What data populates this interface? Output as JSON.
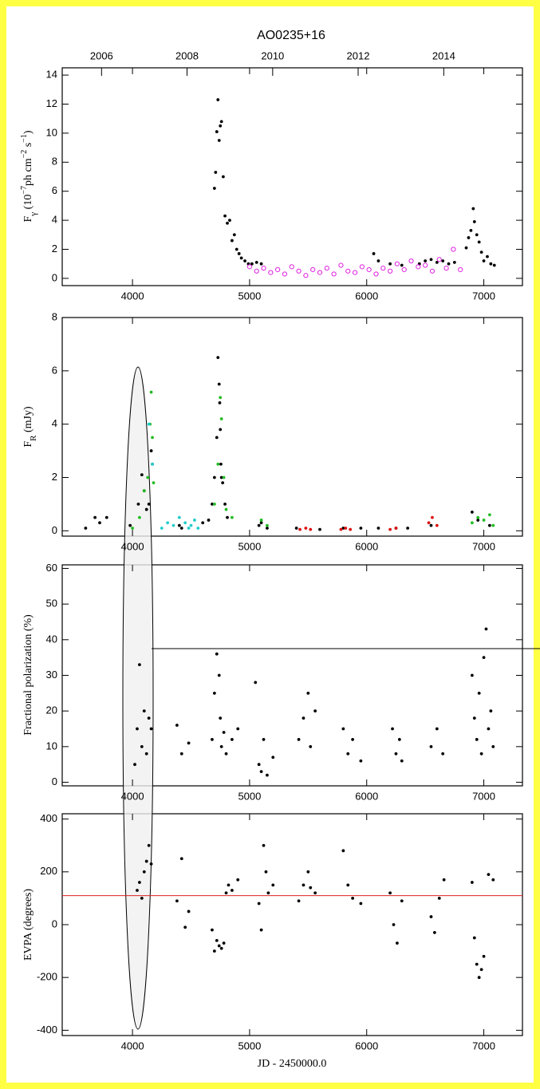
{
  "chart_data": [
    {
      "type": "scatter",
      "title": "AO0235+16",
      "ylabel": [
        "F",
        "γ",
        " (10",
        "−7",
        "ph cm",
        "−2",
        " s",
        "−1",
        ")"
      ],
      "xlim": [
        3400,
        7330
      ],
      "xticks": [
        4000,
        5000,
        6000,
        7000
      ],
      "x2ticks": [
        {
          "value": 3736,
          "label": "2006"
        },
        {
          "value": 4466,
          "label": "2008"
        },
        {
          "value": 5197,
          "label": "2010"
        },
        {
          "value": 5927,
          "label": "2012"
        },
        {
          "value": 6658,
          "label": "2014"
        }
      ],
      "ylim": [
        -0.5,
        14.5
      ],
      "yticks": [
        0,
        2,
        4,
        6,
        8,
        10,
        12,
        14
      ],
      "series": [
        {
          "color": "#000000",
          "marker": "dot",
          "x": [
            4700,
            4710,
            4720,
            4730,
            4740,
            4750,
            4760,
            4775,
            4790,
            4810,
            4830,
            4850,
            4870,
            4890,
            4910,
            4930,
            4960,
            4990,
            5020,
            5060,
            5100,
            6060,
            6100,
            6200,
            6300,
            6450,
            6500,
            6550,
            6600,
            6650,
            6700,
            6750,
            6850,
            6870,
            6890,
            6910,
            6920,
            6940,
            6960,
            6980,
            7000,
            7030,
            7060,
            7090
          ],
          "values": [
            6.2,
            7.3,
            10.1,
            12.3,
            9.5,
            10.5,
            10.8,
            7.0,
            4.3,
            3.8,
            4.0,
            2.6,
            3.0,
            2.0,
            1.7,
            1.4,
            1.2,
            1.0,
            1.0,
            1.1,
            1.0,
            1.7,
            1.2,
            1.0,
            0.9,
            1.0,
            1.2,
            1.3,
            1.1,
            1.2,
            1.0,
            1.1,
            2.1,
            2.8,
            3.3,
            4.8,
            3.9,
            3.0,
            2.5,
            1.8,
            1.2,
            1.5,
            1.0,
            0.9
          ]
        },
        {
          "color": "#e020e0",
          "marker": "open",
          "x": [
            5000,
            5060,
            5120,
            5180,
            5240,
            5300,
            5360,
            5420,
            5480,
            5540,
            5600,
            5660,
            5720,
            5780,
            5840,
            5900,
            5960,
            6020,
            6080,
            6140,
            6200,
            6260,
            6320,
            6380,
            6440,
            6500,
            6560,
            6620,
            6680,
            6740,
            6800
          ],
          "values": [
            0.8,
            0.5,
            0.7,
            0.4,
            0.6,
            0.3,
            0.8,
            0.5,
            0.2,
            0.6,
            0.4,
            0.7,
            0.3,
            0.9,
            0.5,
            0.4,
            0.8,
            0.6,
            0.3,
            0.7,
            0.5,
            1.0,
            0.6,
            1.2,
            0.8,
            0.9,
            0.5,
            1.3,
            0.7,
            2.0,
            0.6
          ]
        }
      ]
    },
    {
      "type": "scatter",
      "ylabel": [
        "F",
        "R",
        " (mJy)"
      ],
      "xlim": [
        3400,
        7330
      ],
      "xticks": [
        4000,
        5000,
        6000,
        7000
      ],
      "ylim": [
        -0.2,
        8.0
      ],
      "yticks": [
        0,
        2,
        4,
        6,
        8
      ],
      "series": [
        {
          "color": "#000000",
          "marker": "dot",
          "x": [
            3600,
            3680,
            3720,
            3780,
            3980,
            4050,
            4080,
            4100,
            4120,
            4140,
            4160,
            4170,
            4400,
            4420,
            4600,
            4650,
            4680,
            4700,
            4720,
            4730,
            4740,
            4745,
            4750,
            4755,
            4760,
            4770,
            4790,
            4810,
            5080,
            5100,
            5150,
            5400,
            5600,
            5800,
            5950,
            6100,
            6250,
            6350,
            6550,
            6900,
            6950,
            7050
          ],
          "values": [
            0.1,
            0.5,
            0.3,
            0.5,
            0.2,
            1.0,
            2.1,
            1.5,
            0.8,
            1.0,
            3.0,
            2.5,
            0.2,
            0.1,
            0.3,
            0.4,
            1.0,
            2.0,
            3.5,
            6.5,
            5.5,
            4.8,
            3.8,
            2.5,
            2.0,
            1.8,
            1.0,
            0.5,
            0.2,
            0.3,
            0.1,
            0.1,
            0.05,
            0.1,
            0.1,
            0.1,
            0.1,
            0.1,
            0.2,
            0.7,
            0.4,
            0.2
          ]
        },
        {
          "color": "#22bb22",
          "marker": "dot",
          "x": [
            4000,
            4060,
            4100,
            4130,
            4150,
            4160,
            4170,
            4180,
            4700,
            4730,
            4750,
            4760,
            4780,
            4800,
            4850,
            5100,
            5150,
            6900,
            6950,
            7000,
            7050,
            7080
          ],
          "values": [
            0.1,
            0.5,
            1.5,
            2.0,
            4.0,
            5.2,
            3.5,
            1.8,
            1.0,
            2.5,
            5.0,
            4.2,
            2.0,
            0.8,
            0.5,
            0.4,
            0.2,
            0.3,
            0.5,
            0.4,
            0.6,
            0.2
          ]
        },
        {
          "color": "#22cccc",
          "marker": "dot",
          "x": [
            4250,
            4300,
            4350,
            4400,
            4450,
            4480,
            4500,
            4530,
            4560,
            4140,
            4170
          ],
          "values": [
            0.1,
            0.3,
            0.2,
            0.5,
            0.3,
            0.1,
            0.2,
            0.4,
            0.1,
            4.0,
            2.5
          ]
        },
        {
          "color": "#dd1111",
          "marker": "dot",
          "x": [
            5430,
            5480,
            5520,
            5780,
            5820,
            5860,
            6200,
            6250,
            6530,
            6560,
            6600
          ],
          "values": [
            0.05,
            0.1,
            0.05,
            0.05,
            0.1,
            0.05,
            0.05,
            0.1,
            0.3,
            0.5,
            0.2
          ]
        }
      ]
    },
    {
      "type": "scatter",
      "ylabel": [
        "Fractional polarization (%)"
      ],
      "xlim": [
        3400,
        7330
      ],
      "xticks": [
        4000,
        5000,
        6000,
        7000
      ],
      "ylim": [
        -1,
        61
      ],
      "yticks": [
        0,
        10,
        20,
        30,
        40,
        50,
        60
      ],
      "series": [
        {
          "color": "#000000",
          "marker": "dot",
          "x": [
            4020,
            4040,
            4060,
            4080,
            4100,
            4120,
            4140,
            4160,
            4380,
            4420,
            4480,
            4680,
            4700,
            4720,
            4740,
            4750,
            4760,
            4780,
            4800,
            4850,
            4900,
            5050,
            5080,
            5100,
            5120,
            5150,
            5200,
            5420,
            5460,
            5500,
            5520,
            5560,
            5800,
            5840,
            5880,
            5950,
            6220,
            6250,
            6280,
            6300,
            6550,
            6600,
            6650,
            6900,
            6920,
            6940,
            6960,
            6980,
            7000,
            7020,
            7040,
            7060,
            7080
          ],
          "values": [
            5,
            15,
            33,
            10,
            20,
            8,
            18,
            15,
            16,
            8,
            11,
            12,
            25,
            36,
            30,
            18,
            10,
            14,
            8,
            12,
            15,
            28,
            5,
            3,
            12,
            2,
            7,
            12,
            18,
            25,
            10,
            20,
            15,
            8,
            12,
            6,
            15,
            8,
            12,
            6,
            10,
            15,
            8,
            30,
            18,
            12,
            25,
            8,
            35,
            43,
            15,
            20,
            10
          ]
        }
      ]
    },
    {
      "type": "scatter",
      "ylabel": [
        "EVPA (degrees)"
      ],
      "xlabel": "JD - 2450000.0",
      "xlim": [
        3400,
        7330
      ],
      "xticks": [
        4000,
        5000,
        6000,
        7000
      ],
      "ylim": [
        -420,
        420
      ],
      "yticks": [
        -400,
        -200,
        0,
        200,
        400
      ],
      "hline": {
        "value": 110,
        "color": "#dd2222"
      },
      "series": [
        {
          "color": "#000000",
          "marker": "dot",
          "x": [
            4040,
            4060,
            4080,
            4100,
            4120,
            4140,
            4160,
            4380,
            4420,
            4450,
            4480,
            4680,
            4700,
            4720,
            4740,
            4760,
            4780,
            4800,
            4820,
            4850,
            4900,
            5080,
            5100,
            5120,
            5140,
            5160,
            5200,
            5420,
            5460,
            5500,
            5520,
            5560,
            5800,
            5840,
            5880,
            5950,
            6200,
            6230,
            6260,
            6300,
            6550,
            6580,
            6620,
            6660,
            6900,
            6920,
            6940,
            6960,
            6980,
            7000,
            7040,
            7080
          ],
          "values": [
            130,
            160,
            100,
            200,
            240,
            300,
            230,
            90,
            250,
            -10,
            50,
            -20,
            -100,
            -60,
            -80,
            -90,
            -70,
            120,
            150,
            130,
            170,
            80,
            -20,
            300,
            200,
            120,
            150,
            90,
            150,
            200,
            140,
            120,
            280,
            150,
            100,
            80,
            120,
            0,
            -70,
            90,
            30,
            -30,
            100,
            170,
            160,
            -50,
            -150,
            -200,
            -170,
            -120,
            190,
            170
          ]
        }
      ]
    }
  ]
}
